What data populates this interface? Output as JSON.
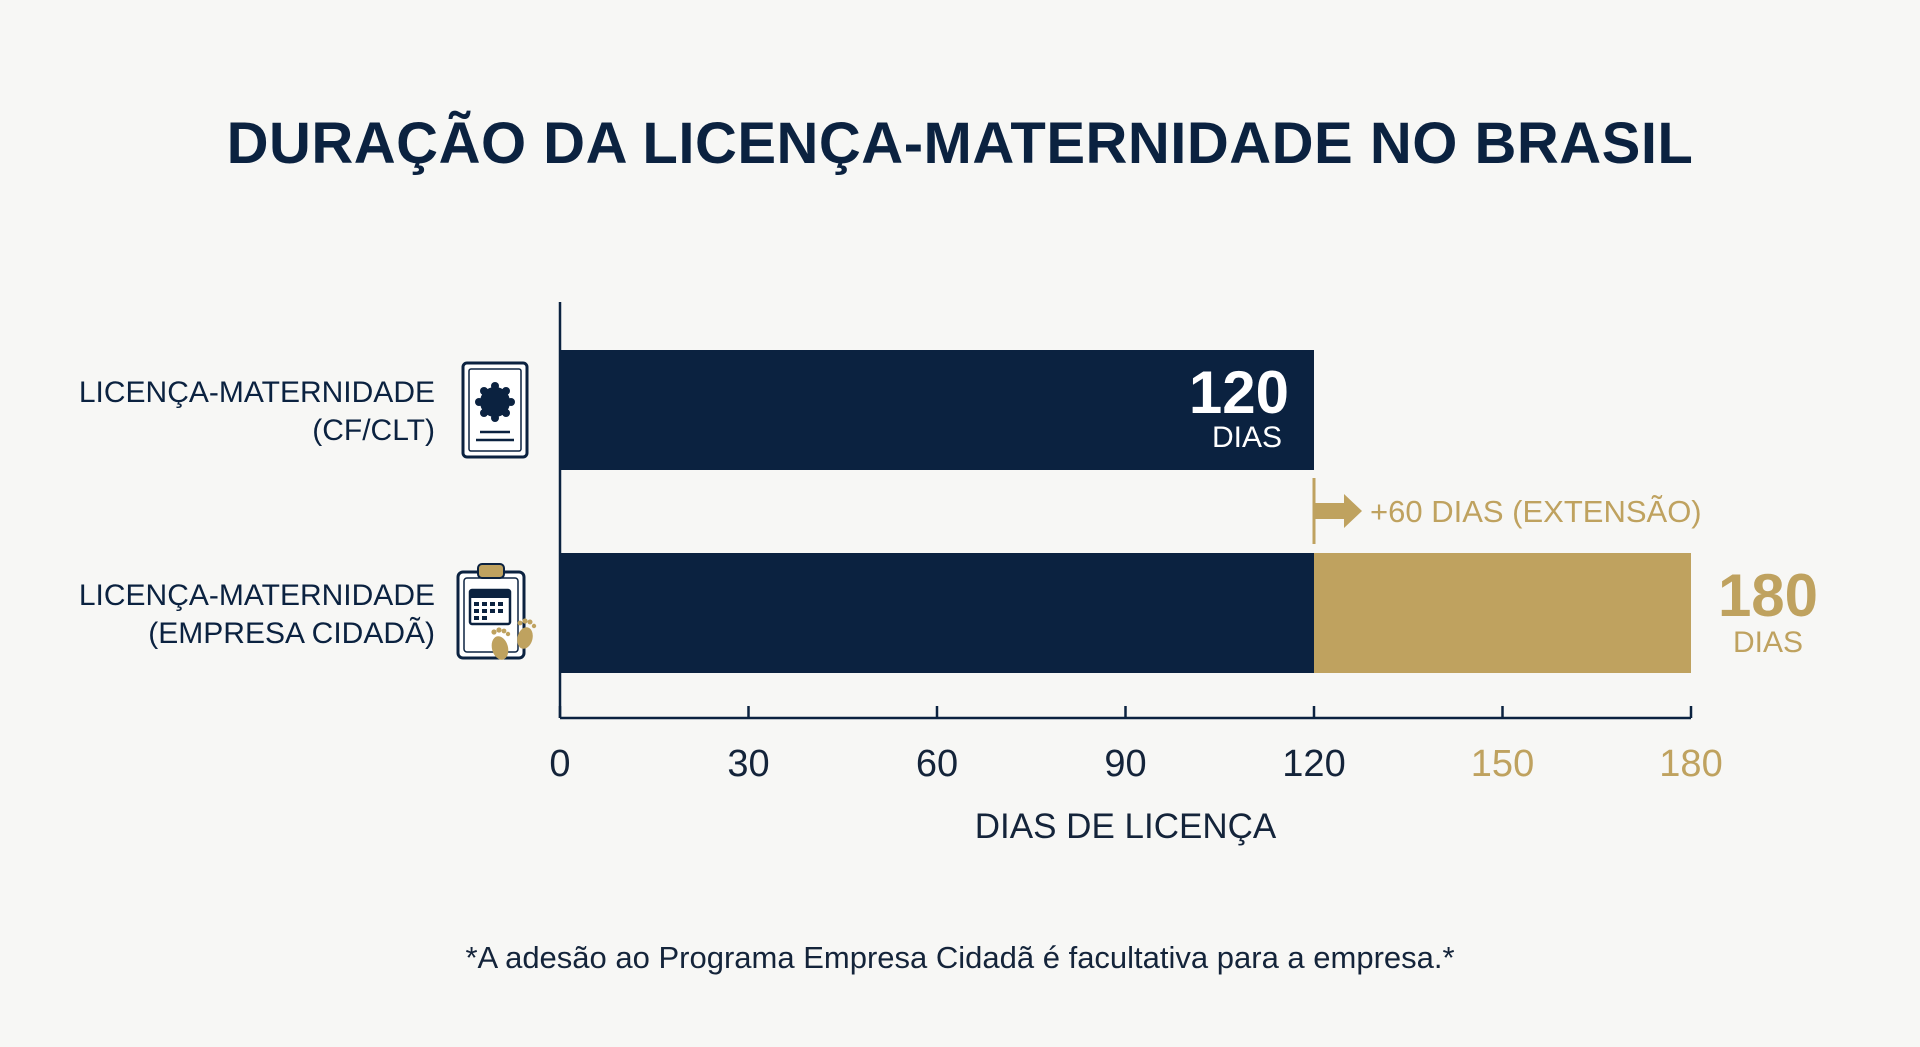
{
  "title": "DURAÇÃO DA LICENÇA-MATERNIDADE NO BRASIL",
  "footnote": "*A adesão ao Programa Empresa Cidadã é facultativa para a empresa.*",
  "colors": {
    "navy": "#0b2240",
    "gold": "#bfa25f",
    "background": "#f7f7f5"
  },
  "rows": [
    {
      "label_line1": "LICENÇA-MATERNIDADE",
      "label_line2": "(CF/CLT)",
      "icon": "certificate-document-icon"
    },
    {
      "label_line1": "LICENÇA-MATERNIDADE",
      "label_line2": "(EMPRESA CIDADÃ)",
      "icon": "calendar-clipboard-footprints-icon"
    }
  ],
  "chart_data": {
    "type": "bar",
    "orientation": "horizontal",
    "stacked": true,
    "categories": [
      "LICENÇA-MATERNIDADE (CF/CLT)",
      "LICENÇA-MATERNIDADE (EMPRESA CIDADÃ)"
    ],
    "series": [
      {
        "values": [
          120,
          120
        ],
        "color": "#0b2240"
      },
      {
        "values": [
          0,
          60
        ],
        "color": "#bfa25f"
      }
    ],
    "totals": [
      120,
      180
    ],
    "value_labels": [
      {
        "value": "120",
        "unit": "DIAS"
      },
      {
        "value": "180",
        "unit": "DIAS"
      }
    ],
    "annotation": "+60 DIAS (EXTENSÃO)",
    "xlabel": "DIAS DE LICENÇA",
    "xlim": [
      0,
      180
    ],
    "xticks": [
      0,
      30,
      60,
      90,
      120,
      150,
      180
    ],
    "xticks_gold_from": 150,
    "grid": false,
    "legend": "none"
  }
}
